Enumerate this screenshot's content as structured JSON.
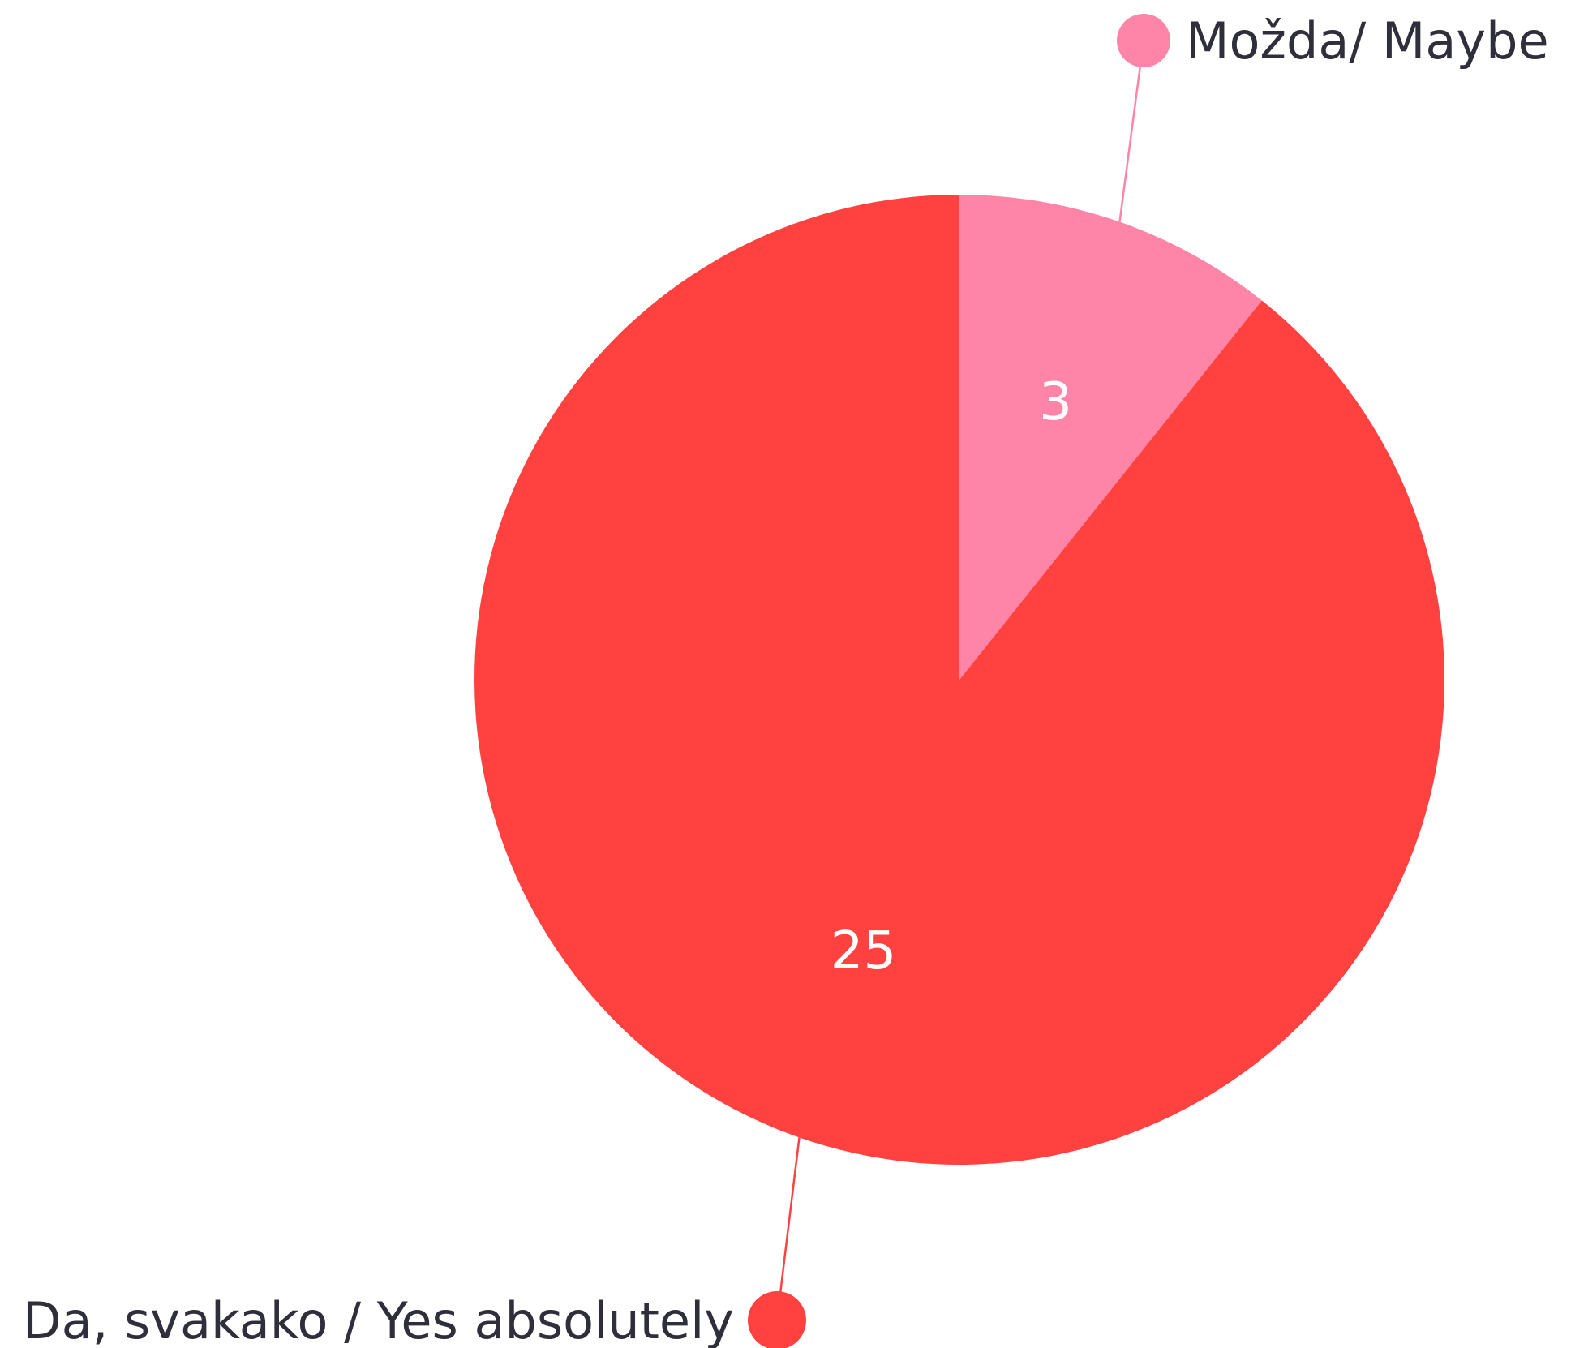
{
  "chart_data": {
    "type": "pie",
    "slices": [
      {
        "label": "Možda/ Maybe",
        "value": 3,
        "color": "#FF85A8"
      },
      {
        "label": "Da, svakako / Yes absolutely",
        "value": 25,
        "color": "#FF4240"
      }
    ],
    "start_angle": "12 o'clock",
    "direction": "clockwise",
    "value_labels": "inside slices",
    "legend": "callout labels with leader lines"
  }
}
